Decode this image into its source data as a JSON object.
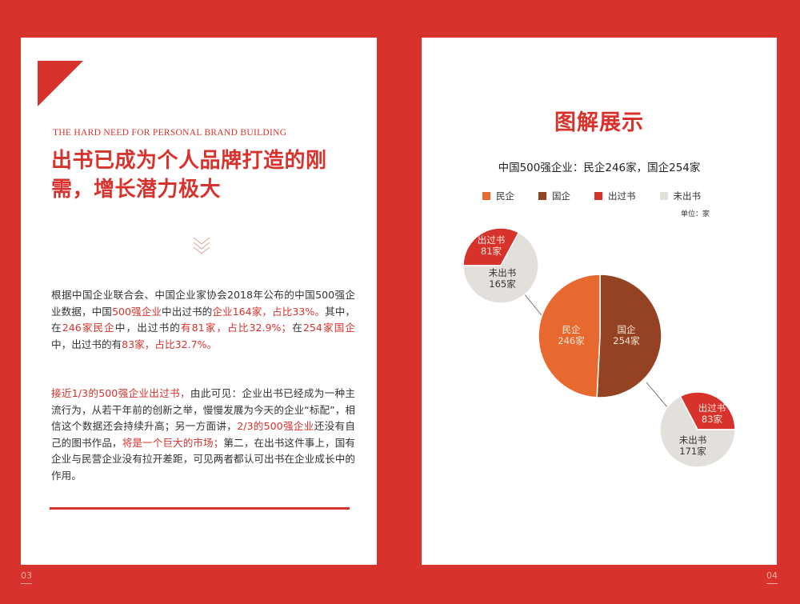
{
  "colors": {
    "background": "#d8322c",
    "private": "#e8692f",
    "state": "#934223",
    "published": "#d8322c",
    "unpublished": "#e3dfdb"
  },
  "left": {
    "subtitle_en": "THE HARD NEED FOR PERSONAL BRAND BUILDING",
    "title_line1": "出书已成为个人品牌打造的刚",
    "title_line2": "需，增长潜力极大",
    "icon": "chevron-double-down-icon",
    "para1": [
      {
        "t": "根据中国企业联合会、中国企业家协会2018年公布的中国500强企业数据，中国",
        "h": false
      },
      {
        "t": "500强企业",
        "h": true
      },
      {
        "t": "中出过书的",
        "h": false
      },
      {
        "t": "企业164家，占比33%。",
        "h": true
      },
      {
        "t": "其中，在",
        "h": false
      },
      {
        "t": "246家民企",
        "h": true
      },
      {
        "t": "中，出过书的",
        "h": false
      },
      {
        "t": "有81家，占比32.9%；",
        "h": true
      },
      {
        "t": "在",
        "h": false
      },
      {
        "t": "254家国企",
        "h": true
      },
      {
        "t": "中，出过书的有",
        "h": false
      },
      {
        "t": "83家，占比32.7%。",
        "h": true
      }
    ],
    "para2": [
      {
        "t": "接近1/3的500强企业出过书，",
        "h": true
      },
      {
        "t": "由此可见：企业出书已经成为一种主流行为，从若干年前的创新之举，慢慢发展为今天的企业“标配”，相信这个数据还会持续升高；另一方面讲，",
        "h": false
      },
      {
        "t": "2/3的500强企业",
        "h": true
      },
      {
        "t": "还没有自己的图书作品，",
        "h": false
      },
      {
        "t": "将是一个巨大的市场；",
        "h": true
      },
      {
        "t": "第二，在出书这件事上，国有企业与民营企业没有拉开差距，可见两者都认可出书在企业成长中的作用。",
        "h": false
      }
    ],
    "page_number": "03"
  },
  "right": {
    "title": "图解展示",
    "page_number": "04"
  },
  "chart_data": {
    "type": "pie",
    "title": "中国500强企业：民企246家，国企254家",
    "unit_label": "单位：家",
    "legend": [
      {
        "name": "民企",
        "color": "#e8692f"
      },
      {
        "name": "国企",
        "color": "#934223"
      },
      {
        "name": "出过书",
        "color": "#d8322c"
      },
      {
        "name": "未出书",
        "color": "#e3dfdb"
      }
    ],
    "main": {
      "slices": [
        {
          "label": "民企",
          "value": 246,
          "value_label": "246家"
        },
        {
          "label": "国企",
          "value": 254,
          "value_label": "254家"
        }
      ]
    },
    "private_breakdown": {
      "slices": [
        {
          "label": "出过书",
          "value": 81,
          "value_label": "81家"
        },
        {
          "label": "未出书",
          "value": 165,
          "value_label": "165家"
        }
      ]
    },
    "state_breakdown": {
      "slices": [
        {
          "label": "出过书",
          "value": 83,
          "value_label": "83家"
        },
        {
          "label": "未出书",
          "value": 171,
          "value_label": "171家"
        }
      ]
    }
  }
}
